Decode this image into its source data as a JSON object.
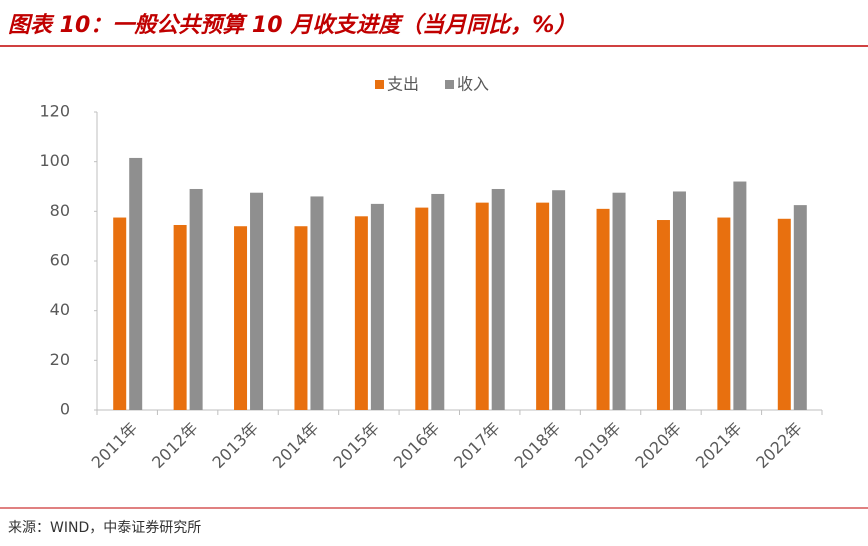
{
  "chart_data": {
    "type": "bar",
    "title": "图表 10：一般公共预算 10 月收支进度（当月同比，%）",
    "source": "来源：WIND，中泰证券研究所",
    "categories": [
      "2011年",
      "2012年",
      "2013年",
      "2014年",
      "2015年",
      "2016年",
      "2017年",
      "2018年",
      "2019年",
      "2020年",
      "2021年",
      "2022年"
    ],
    "series": [
      {
        "name": "支出",
        "color": "#e8700f",
        "values": [
          77.5,
          74.5,
          74,
          74,
          78,
          81.5,
          83.5,
          83.5,
          81,
          76.5,
          77.5,
          77
        ]
      },
      {
        "name": "收入",
        "color": "#8f8f8f",
        "values": [
          101.5,
          89,
          87.5,
          86,
          83,
          87,
          89,
          88.5,
          87.5,
          88,
          92,
          82.5
        ]
      }
    ],
    "ylim": [
      0,
      120
    ],
    "yticks": [
      0,
      20,
      40,
      60,
      80,
      100,
      120
    ],
    "grid": false,
    "legend": "top"
  }
}
